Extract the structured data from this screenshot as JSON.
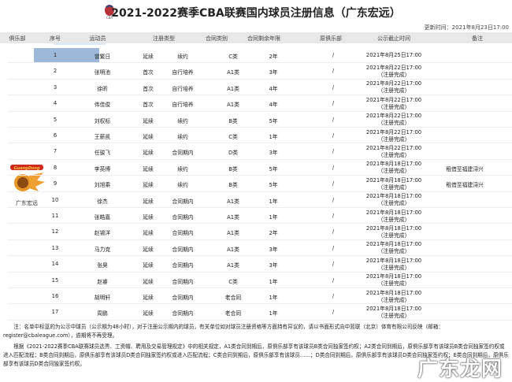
{
  "title": "2021-2022赛季CBA联赛国内球员注册信息（广东宏远）",
  "update_time": "更新时间：2021年8月23日17:00",
  "headers": [
    "俱乐部",
    "序号",
    "运动员",
    "注册类型",
    "合同类别",
    "合同剩余年限",
    "原俱乐部",
    "公示截止时间",
    "备注"
  ],
  "club": {
    "name": "广东宏远",
    "logo_text": "GuangDong"
  },
  "rows": [
    {
      "no": "1",
      "name": "曾繁日",
      "reg": "延续",
      "contract": "续约",
      "cls": "C类",
      "years": "2年",
      "orig": "/",
      "date": "2021年8月25日17:00",
      "status": "",
      "remark": ""
    },
    {
      "no": "2",
      "name": "张明池",
      "reg": "首次",
      "contract": "自行培养",
      "cls": "A1类",
      "years": "3年",
      "orig": "/",
      "date": "2021年8月22日17:00",
      "status": "（注册完成）",
      "remark": ""
    },
    {
      "no": "3",
      "name": "徐昕",
      "reg": "首次",
      "contract": "自行培养",
      "cls": "A1类",
      "years": "4年",
      "orig": "/",
      "date": "2021年8月22日17:00",
      "status": "（注册完成）",
      "remark": ""
    },
    {
      "no": "4",
      "name": "伟佳俊",
      "reg": "首次",
      "contract": "自行培养",
      "cls": "A1类",
      "years": "4年",
      "orig": "/",
      "date": "2021年8月22日17:00",
      "status": "（注册完成）",
      "remark": ""
    },
    {
      "no": "5",
      "name": "刘权标",
      "reg": "延续",
      "contract": "续约",
      "cls": "B类",
      "years": "5年",
      "orig": "/",
      "date": "2021年8月22日17:00",
      "status": "（注册完成）",
      "remark": ""
    },
    {
      "no": "6",
      "name": "王薪凯",
      "reg": "延续",
      "contract": "续约",
      "cls": "C类",
      "years": "1年",
      "orig": "/",
      "date": "2021年8月22日17:00",
      "status": "（注册完成）",
      "remark": ""
    },
    {
      "no": "7",
      "name": "任骏飞",
      "reg": "延续",
      "contract": "合同期内",
      "cls": "D类",
      "years": "3年",
      "orig": "/",
      "date": "2021年8月22日17:00",
      "status": "（注册完成）",
      "remark": ""
    },
    {
      "no": "8",
      "name": "李英博",
      "reg": "延续",
      "contract": "续约",
      "cls": "B类",
      "years": "5年",
      "orig": "/",
      "date": "2021年8月18日17:00",
      "status": "（注册完成）",
      "remark": "租借至福建浔兴"
    },
    {
      "no": "9",
      "name": "刘旭乘",
      "reg": "延续",
      "contract": "续约",
      "cls": "B类",
      "years": "5年",
      "orig": "/",
      "date": "2021年8月18日17:00",
      "status": "（注册完成）",
      "remark": "租借至福建浔兴"
    },
    {
      "no": "10",
      "name": "徐杰",
      "reg": "延续",
      "contract": "合同期内",
      "cls": "A1类",
      "years": "1年",
      "orig": "/",
      "date": "2021年8月18日17:00",
      "status": "（注册完成）",
      "remark": ""
    },
    {
      "no": "11",
      "name": "张皓嘉",
      "reg": "延续",
      "contract": "合同期内",
      "cls": "A1类",
      "years": "1年",
      "orig": "/",
      "date": "2021年8月18日17:00",
      "status": "（注册完成）",
      "remark": ""
    },
    {
      "no": "12",
      "name": "赵锡洋",
      "reg": "延续",
      "contract": "合同期内",
      "cls": "A1类",
      "years": "2年",
      "orig": "/",
      "date": "2021年8月18日17:00",
      "status": "（注册完成）",
      "remark": ""
    },
    {
      "no": "13",
      "name": "马力克",
      "reg": "延续",
      "contract": "合同期内",
      "cls": "A1类",
      "years": "3年",
      "orig": "/",
      "date": "2021年8月18日17:00",
      "status": "（注册完成）",
      "remark": ""
    },
    {
      "no": "14",
      "name": "张昊",
      "reg": "延续",
      "contract": "合同期内",
      "cls": "A1类",
      "years": "3年",
      "orig": "/",
      "date": "2021年8月18日17:00",
      "status": "（注册完成）",
      "remark": ""
    },
    {
      "no": "15",
      "name": "赵睿",
      "reg": "延续",
      "contract": "合同期内",
      "cls": "C类",
      "years": "1年",
      "orig": "/",
      "date": "2021年8月18日17:00",
      "status": "（注册完成）",
      "remark": ""
    },
    {
      "no": "16",
      "name": "胡明轩",
      "reg": "延续",
      "contract": "合同期内",
      "cls": "老合同",
      "years": "1年",
      "orig": "/",
      "date": "2021年8月18日17:00",
      "status": "（注册完成）",
      "remark": ""
    },
    {
      "no": "17",
      "name": "周鹏",
      "reg": "延续",
      "contract": "合同期内",
      "cls": "老合同",
      "years": "1年",
      "orig": "/",
      "date": "2021年8月18日17:00",
      "status": "（注册完成）",
      "remark": ""
    }
  ],
  "note1": "注：名单中标蓝的为公示中球员（公示期为48小时），对于注册公示期内的球员，有关单位如对球员注册资格等方面持有异议的，请以书面形式向中篮联（北京）体育有限公司反映（邮箱：register@cbaleague.com），逾期将不再受理。",
  "note2": "根据《2021-2022赛季CBA联赛球员选秀、工资帽、聘用及交易管理规定》中的相关规定，A1类合同到期后，原俱乐部享有该球员B类合同独家签约权；A2类合同到期后，原俱乐部享有该球员B类合同独家签约权或进入匹配流程；B类合同到期后，原俱乐部享有该球员D类合同独家签约权或进入匹配流程；C类合同到期后，原俱乐部享有该球员……；D类合同到期后，原俱乐部享有该球员D类合同独家签约权；E类合同到期后，原俱乐部享有该球员D类合同独家签约权。",
  "watermark": "广东龙网"
}
